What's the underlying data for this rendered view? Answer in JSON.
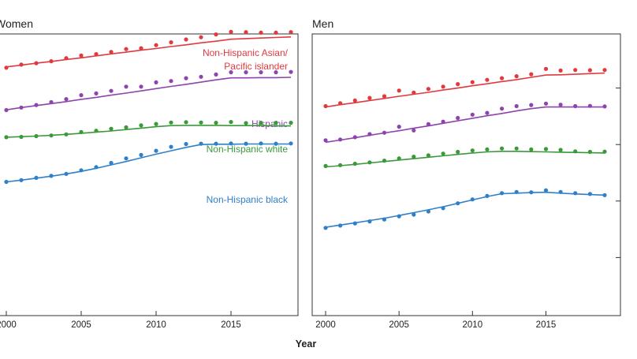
{
  "figure": {
    "xlabel": "Year"
  },
  "chart_data": [
    {
      "type": "line",
      "title": "Women",
      "xlabel": "Year",
      "ylabel": "",
      "xlim": [
        2000,
        2019
      ],
      "ylim": [
        0,
        100
      ],
      "x_ticks": [
        2000,
        2005,
        2010,
        2015
      ],
      "x_tick_labels": [
        "2000",
        "2005",
        "2010",
        "2015"
      ],
      "y_ticks": [
        0,
        20,
        40,
        60,
        80,
        100
      ],
      "grid": false,
      "legend": "inline labels",
      "x": [
        2000,
        2001,
        2002,
        2003,
        2004,
        2005,
        2006,
        2007,
        2008,
        2009,
        2010,
        2011,
        2012,
        2013,
        2014,
        2015,
        2016,
        2017,
        2018,
        2019
      ],
      "series": [
        {
          "name": "Non-Hispanic Asian/ Pacific islander",
          "label_lines": [
            "Non-Hispanic Asian/",
            "Pacific islander"
          ],
          "color": "#e03a3e",
          "points": [
            87.2,
            88.3,
            88.8,
            89.5,
            90.6,
            91.5,
            92.0,
            92.8,
            93.8,
            94.1,
            95.2,
            96.2,
            97.2,
            98.0,
            99.0,
            99.9,
            99.8,
            99.6,
            99.6,
            99.8
          ],
          "trend": [
            87.5,
            88.1,
            88.8,
            89.4,
            90.1,
            90.7,
            91.4,
            92.1,
            92.7,
            93.4,
            94.0,
            94.7,
            95.3,
            96.0,
            96.6,
            97.3,
            97.5,
            97.7,
            97.9,
            98.1
          ]
        },
        {
          "name": "Hispanic",
          "label_lines": [
            "Hispanic"
          ],
          "color": "#8e44ad",
          "points": [
            72.2,
            73.1,
            74.0,
            75.0,
            76.1,
            77.5,
            78.1,
            79.0,
            80.5,
            80.5,
            82.0,
            82.5,
            83.5,
            84.0,
            84.8,
            85.6,
            85.6,
            85.6,
            85.6,
            85.7
          ],
          "trend": [
            72.3,
            73.1,
            73.8,
            74.5,
            75.2,
            76.0,
            76.7,
            77.5,
            78.2,
            79.0,
            79.8,
            80.6,
            81.3,
            82.1,
            82.9,
            83.6,
            83.6,
            83.7,
            83.7,
            83.8
          ]
        },
        {
          "name": "Non-Hispanic white",
          "label_lines": [
            "Non-Hispanic white"
          ],
          "color": "#3a9a3a",
          "points": [
            62.6,
            62.7,
            63.0,
            63.2,
            63.6,
            64.4,
            64.9,
            65.6,
            66.1,
            66.8,
            67.3,
            67.8,
            67.9,
            67.8,
            67.7,
            68.0,
            67.6,
            67.7,
            67.7,
            67.7
          ],
          "trend": [
            62.6,
            62.8,
            63.0,
            63.3,
            63.6,
            64.0,
            64.4,
            64.8,
            65.3,
            65.8,
            66.3,
            66.7,
            66.8,
            66.8,
            66.8,
            66.7,
            66.7,
            66.7,
            66.6,
            66.6
          ]
        },
        {
          "name": "Non-Hispanic black",
          "label_lines": [
            "Non-Hispanic black"
          ],
          "color": "#2f80c9",
          "points": [
            46.8,
            47.4,
            48.2,
            48.9,
            49.6,
            50.9,
            52.0,
            53.5,
            55.1,
            56.3,
            57.8,
            59.2,
            60.2,
            60.3,
            60.3,
            60.4,
            60.3,
            60.4,
            60.3,
            60.4
          ],
          "trend": [
            46.8,
            47.4,
            48.1,
            48.8,
            49.6,
            50.5,
            51.6,
            52.8,
            54.0,
            55.3,
            56.6,
            57.8,
            59.0,
            60.0,
            60.1,
            60.1,
            60.2,
            60.2,
            60.2,
            60.2
          ]
        }
      ]
    },
    {
      "type": "line",
      "title": "Men",
      "xlabel": "Year",
      "ylabel": "",
      "xlim": [
        2000,
        2019
      ],
      "ylim": [
        0,
        100
      ],
      "x_ticks": [
        2000,
        2005,
        2010,
        2015
      ],
      "x_tick_labels": [
        "2000",
        "2005",
        "2010",
        "2015"
      ],
      "y_ticks": [
        0,
        20,
        40,
        60,
        80,
        100
      ],
      "grid": false,
      "legend": "none",
      "x": [
        2000,
        2001,
        2002,
        2003,
        2004,
        2005,
        2006,
        2007,
        2008,
        2009,
        2010,
        2011,
        2012,
        2013,
        2014,
        2015,
        2016,
        2017,
        2018,
        2019
      ],
      "series": [
        {
          "name": "Non-Hispanic Asian/ Pacific islander",
          "color": "#e03a3e",
          "points": [
            73.6,
            74.6,
            75.6,
            76.5,
            77.1,
            79.1,
            78.4,
            79.7,
            80.5,
            81.4,
            82.1,
            82.9,
            83.5,
            84.2,
            84.9,
            86.8,
            86.2,
            86.4,
            86.3,
            86.4
          ],
          "trend": [
            73.3,
            74.1,
            74.8,
            75.6,
            76.3,
            77.1,
            77.8,
            78.5,
            79.3,
            80.0,
            80.8,
            81.5,
            82.3,
            83.0,
            83.8,
            84.6,
            84.7,
            84.9,
            85.1,
            85.3
          ]
        },
        {
          "name": "Hispanic",
          "color": "#8e44ad",
          "points": [
            61.5,
            61.8,
            62.6,
            63.7,
            64.2,
            66.3,
            65.0,
            67.2,
            68.1,
            69.4,
            70.6,
            71.2,
            72.7,
            73.6,
            74.0,
            74.5,
            74.1,
            73.6,
            73.7,
            73.5
          ],
          "trend": [
            60.8,
            61.6,
            62.4,
            63.3,
            64.1,
            64.9,
            65.8,
            66.6,
            67.5,
            68.4,
            69.3,
            70.2,
            71.0,
            71.9,
            72.7,
            73.3,
            73.3,
            73.3,
            73.3,
            73.3
          ]
        },
        {
          "name": "Non-Hispanic white",
          "color": "#3a9a3a",
          "points": [
            52.4,
            52.7,
            53.2,
            53.7,
            54.3,
            55.1,
            55.7,
            56.2,
            56.8,
            57.4,
            57.9,
            58.3,
            58.6,
            58.6,
            58.3,
            58.4,
            58.1,
            57.6,
            57.4,
            57.5
          ],
          "trend": [
            52.1,
            52.5,
            53.0,
            53.5,
            54.0,
            54.5,
            55.0,
            55.5,
            56.0,
            56.5,
            57.0,
            57.4,
            57.6,
            57.6,
            57.5,
            57.4,
            57.3,
            57.2,
            57.1,
            57.0
          ]
        },
        {
          "name": "Non-Hispanic black",
          "color": "#2f80c9",
          "points": [
            30.5,
            31.3,
            32.1,
            32.8,
            33.5,
            34.6,
            35.2,
            36.3,
            37.5,
            39.2,
            40.6,
            41.8,
            42.8,
            43.2,
            43.1,
            43.8,
            43.2,
            42.8,
            42.5,
            42.1
          ],
          "trend": [
            30.7,
            31.5,
            32.3,
            33.1,
            33.9,
            34.9,
            35.9,
            36.9,
            38.0,
            39.2,
            40.4,
            41.6,
            42.6,
            42.8,
            43.0,
            43.1,
            42.8,
            42.5,
            42.3,
            42.1
          ]
        }
      ]
    }
  ]
}
